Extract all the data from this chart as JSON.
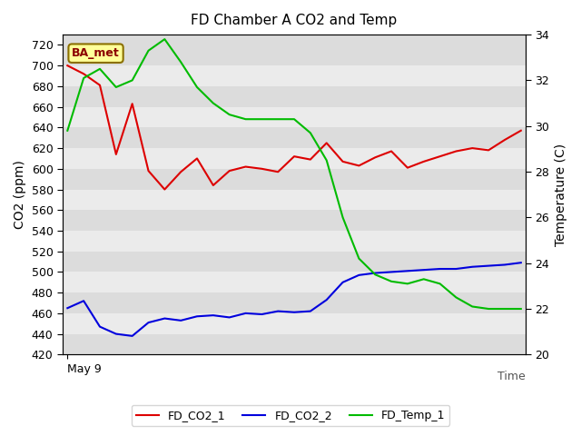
{
  "title": "FD Chamber A CO2 and Temp",
  "xlabel": "Time",
  "ylabel_left": "CO2 (ppm)",
  "ylabel_right": "Temperature (C)",
  "ylim_left": [
    420,
    730
  ],
  "ylim_right": [
    20,
    34
  ],
  "yticks_left": [
    420,
    440,
    460,
    480,
    500,
    520,
    540,
    560,
    580,
    600,
    620,
    640,
    660,
    680,
    700,
    720
  ],
  "yticks_right": [
    20,
    22,
    24,
    26,
    28,
    30,
    32,
    34
  ],
  "x_label_start": "May 9",
  "annotation_text": "BA_met",
  "annotation_color": "#8B0000",
  "annotation_bg": "#FFFF99",
  "annotation_edge": "#8B7000",
  "bg_color": "#E8E8E8",
  "plot_bg_light": "#F0F0F0",
  "plot_bg_dark": "#E0E0E0",
  "FD_CO2_1": {
    "color": "#DD0000",
    "x": [
      0,
      1,
      2,
      3,
      4,
      5,
      6,
      7,
      8,
      9,
      10,
      11,
      12,
      13,
      14,
      15,
      16,
      17,
      18,
      19,
      20,
      21,
      22,
      23,
      24,
      25,
      26,
      27,
      28
    ],
    "y": [
      700,
      692,
      681,
      614,
      663,
      598,
      580,
      597,
      610,
      584,
      598,
      602,
      600,
      597,
      612,
      609,
      625,
      607,
      603,
      611,
      617,
      601,
      607,
      612,
      617,
      620,
      618,
      628,
      637
    ]
  },
  "FD_CO2_2": {
    "color": "#0000DD",
    "x": [
      0,
      1,
      2,
      3,
      4,
      5,
      6,
      7,
      8,
      9,
      10,
      11,
      12,
      13,
      14,
      15,
      16,
      17,
      18,
      19,
      20,
      21,
      22,
      23,
      24,
      25,
      26,
      27,
      28
    ],
    "y": [
      465,
      472,
      447,
      440,
      438,
      451,
      455,
      453,
      457,
      458,
      456,
      460,
      459,
      462,
      461,
      462,
      473,
      490,
      497,
      499,
      500,
      501,
      502,
      503,
      503,
      505,
      506,
      507,
      509
    ]
  },
  "FD_Temp_1": {
    "color": "#00BB00",
    "x": [
      0,
      1,
      2,
      3,
      4,
      5,
      6,
      7,
      8,
      9,
      10,
      11,
      12,
      13,
      14,
      15,
      16,
      17,
      18,
      19,
      20,
      21,
      22,
      23,
      24,
      25,
      26,
      27,
      28
    ],
    "y_temp": [
      29.8,
      32.1,
      32.5,
      31.7,
      32.0,
      33.3,
      33.8,
      32.8,
      31.7,
      31.0,
      30.5,
      30.3,
      30.3,
      30.3,
      30.3,
      29.7,
      28.5,
      26.0,
      24.2,
      23.5,
      23.2,
      23.1,
      23.3,
      23.1,
      22.5,
      22.1,
      22.0,
      22.0,
      22.0
    ]
  }
}
